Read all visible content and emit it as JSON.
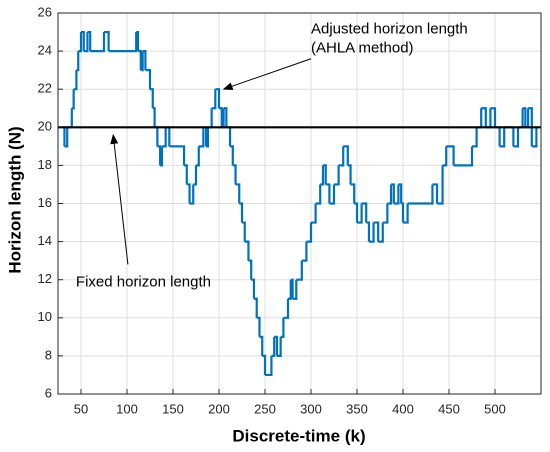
{
  "chart_data": {
    "type": "step",
    "xlabel": "Discrete-time (k)",
    "ylabel": "Horizon length (N)",
    "xlim": [
      25,
      550
    ],
    "ylim": [
      6,
      26
    ],
    "xticks": [
      50,
      100,
      150,
      200,
      250,
      300,
      350,
      400,
      450,
      500
    ],
    "yticks": [
      6,
      8,
      10,
      12,
      14,
      16,
      18,
      20,
      22,
      24,
      26
    ],
    "grid": true,
    "series": [
      {
        "color": "#0072bd",
        "x": [
          30,
          32,
          35,
          40,
          42,
          45,
          47,
          50,
          53,
          57,
          60,
          75,
          80,
          110,
          112,
          115,
          117,
          120,
          125,
          128,
          130,
          133,
          136,
          138,
          142,
          146,
          160,
          162,
          165,
          168,
          172,
          175,
          178,
          183,
          186,
          188,
          192,
          196,
          200,
          203,
          205,
          208,
          212,
          215,
          218,
          222,
          225,
          228,
          232,
          235,
          238,
          241,
          244,
          247,
          250,
          257,
          260,
          263,
          267,
          270,
          275,
          278,
          280,
          284,
          290,
          295,
          300,
          305,
          310,
          313,
          316,
          320,
          325,
          330,
          335,
          340,
          343,
          347,
          350,
          355,
          360,
          363,
          368,
          373,
          378,
          383,
          387,
          390,
          395,
          398,
          400,
          405,
          430,
          432,
          437,
          443,
          447,
          455,
          475,
          480,
          485,
          490,
          495,
          500,
          505,
          510,
          520,
          525,
          530,
          533,
          536,
          540,
          545
        ],
        "values": [
          20,
          19,
          20,
          21,
          22,
          23,
          24,
          25,
          24,
          25,
          24,
          25,
          24,
          25,
          24,
          23,
          24,
          23,
          22,
          21,
          20,
          19,
          18,
          19,
          20,
          19,
          19,
          18,
          17,
          16,
          17,
          18,
          19,
          20,
          19,
          20,
          21,
          22,
          21,
          20,
          21,
          20,
          19,
          18,
          17,
          16,
          15,
          14,
          13,
          12,
          11,
          10,
          9,
          8,
          7,
          8,
          9,
          8,
          9,
          10,
          11,
          12,
          11,
          12,
          13,
          14,
          15,
          16,
          17,
          18,
          17,
          16,
          17,
          18,
          19,
          18,
          17,
          16,
          15,
          16,
          15,
          14,
          15,
          14,
          15,
          16,
          17,
          16,
          17,
          16,
          15,
          16,
          16,
          17,
          16,
          18,
          19,
          18,
          19,
          20,
          21,
          20,
          21,
          20,
          19,
          20,
          19,
          20,
          21,
          20,
          21,
          19,
          20
        ]
      }
    ],
    "reference_line": {
      "value": 20,
      "color": "#000000"
    },
    "annotations": [
      {
        "text": [
          "Adjusted horizon length",
          "(AHLA method)"
        ],
        "xy": [
          205,
          22
        ],
        "xytext": [
          300,
          23.6
        ]
      },
      {
        "text": [
          "Fixed horizon length"
        ],
        "xy": [
          85,
          19.6
        ],
        "xytext": [
          101,
          12.8
        ]
      }
    ]
  }
}
